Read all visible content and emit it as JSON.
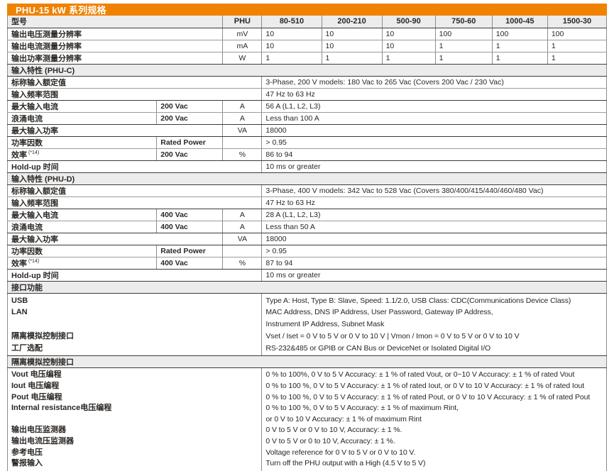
{
  "title": "PHU-15 kW 系列规格",
  "header": {
    "model_col": "型号",
    "unit_col": "PHU",
    "models": [
      "80-510",
      "200-210",
      "500-90",
      "750-60",
      "1000-45",
      "1500-30"
    ]
  },
  "resolution_rows": [
    {
      "label": "输出电压测量分辨率",
      "unit": "mV",
      "values": [
        "10",
        "10",
        "10",
        "100",
        "100",
        "100"
      ],
      "sep": "light"
    },
    {
      "label": "输出电流测量分辨率",
      "unit": "mA",
      "values": [
        "10",
        "10",
        "10",
        "1",
        "1",
        "1"
      ],
      "sep": "light"
    },
    {
      "label": "输出功率测量分辨率",
      "unit": "W",
      "values": [
        "1",
        "1",
        "1",
        "1",
        "1",
        "1"
      ],
      "sep": "dark"
    }
  ],
  "sections": [
    {
      "heading": "输入特性 (PHU-C)",
      "rows": [
        {
          "label": "标称输入额定值",
          "value": "3-Phase, 200 V models: 180 Vac to 265 Vac (Covers 200 Vac / 230 Vac)",
          "sep": "light"
        },
        {
          "label": "输入频率范围",
          "value": "47 Hz to 63 Hz",
          "sep": "dark"
        },
        {
          "label": "最大输入电流",
          "cond": "200 Vac",
          "unit": "A",
          "value": "56 A (L1, L2, L3)",
          "sep": "light"
        },
        {
          "label": "浪涌电流",
          "cond": "200 Vac",
          "unit": "A",
          "value": "Less than 100 A",
          "sep": "dark"
        },
        {
          "label": "最大输入功率",
          "unit": "VA",
          "value": "18000",
          "sep": "dark"
        },
        {
          "label": "功率因数",
          "cond": "Rated Power",
          "unit": "",
          "value": "> 0.95",
          "sep": "light"
        },
        {
          "label": "效率",
          "note": "(*14)",
          "cond": "200 Vac",
          "unit": "%",
          "value": "86 to 94",
          "sep": "dark"
        },
        {
          "label": "Hold-up 时间",
          "value": "10 ms or greater",
          "sep": "dark"
        }
      ]
    },
    {
      "heading": "输入特性 (PHU-D)",
      "rows": [
        {
          "label": "标称输入额定值",
          "value": "3-Phase, 400 V models: 342 Vac to 528 Vac (Covers 380/400/415/440/460/480 Vac)",
          "sep": "light"
        },
        {
          "label": "输入频率范围",
          "value": "47 Hz to 63 Hz",
          "sep": "dark"
        },
        {
          "label": "最大输入电流",
          "cond": "400 Vac",
          "unit": "A",
          "value": "28 A (L1, L2, L3)",
          "sep": "light"
        },
        {
          "label": "浪涌电流",
          "cond": "400 Vac",
          "unit": "A",
          "value": "Less than 50 A",
          "sep": "dark"
        },
        {
          "label": "最大输入功率",
          "unit": "VA",
          "value": "18000",
          "sep": "dark"
        },
        {
          "label": "功率因数",
          "cond": "Rated Power",
          "unit": "",
          "value": "> 0.95",
          "sep": "light"
        },
        {
          "label": "效率",
          "note": "(*14)",
          "cond": "400 Vac",
          "unit": "%",
          "value": "87 to 94",
          "sep": "dark"
        },
        {
          "label": "Hold-up 时间",
          "value": "10 ms or greater",
          "sep": "dark"
        }
      ]
    },
    {
      "heading": "接口功能",
      "block": {
        "left": [
          "USB",
          "LAN",
          "",
          "隔离模拟控制接口",
          "工厂选配"
        ],
        "right": [
          "Type A: Host, Type B: Slave, Speed: 1.1/2.0, USB Class: CDC(Communications Device Class)",
          "MAC Address, DNS IP Address, User Password, Gateway IP Address,",
          "Instrument IP Address, Subnet Mask",
          "Vset / Iset = 0 V to 5 V or 0 V to 10 V | Vmon / Imon = 0 V to 5 V or 0 V to 10 V",
          "RS-232&485 or GPIB or CAN Bus or DeviceNet or Isolated Digital I/O"
        ]
      }
    },
    {
      "heading": "隔离模拟控制接口",
      "block": {
        "left": [
          "Vout 电压编程",
          "Iout 电压编程",
          "Pout 电压编程",
          "Internal resistance电压编程",
          "",
          "输出电压监测器",
          "输出电流压监测器",
          "参考电压",
          "警报输入"
        ],
        "right": [
          "0 % to 100%, 0 V to 5 V Accuracy: ± 1 % of rated Vout, or 0~10 V Accuracy: ± 1 % of rated Vout",
          "0 % to 100 %, 0 V to 5 V Accuracy: ± 1 % of rated Iout, or 0 V to 10 V Accuracy: ± 1 % of rated Iout",
          "0 % to 100 %, 0 V to 5 V Accuracy: ± 1 % of rated Pout, or 0 V to 10 V Accuracy: ± 1 % of rated Pout",
          "0 % to 100 %, 0 V to 5 V Accuracy: ± 1 % of maximum Rint,",
          "or 0 V to 10 V Accuracy: ± 1 % of maximum Rint",
          "0 V to 5 V or 0 V to 10 V, Accuracy: ± 1 %.",
          "0 V to 5 V or 0 to 10 V, Accuracy: ± 1 %.",
          "Voltage reference for 0 V to 5 V or 0 V to 10 V.",
          "Turn off the PHU output with a High (4.5 V to 5 V)"
        ]
      }
    }
  ],
  "colors": {
    "accent_orange": "#EF8200",
    "section_bg": "#ECECEC",
    "border_dark": "#3B3B3B",
    "border_mid": "#8C8C8C",
    "border_light": "#9C9C9C",
    "text": "#2B2724"
  }
}
